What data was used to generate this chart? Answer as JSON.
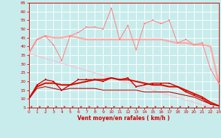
{
  "xlabel": "Vent moyen/en rafales ( km/h )",
  "xlim": [
    0,
    23
  ],
  "ylim": [
    5,
    65
  ],
  "yticks": [
    5,
    10,
    15,
    20,
    25,
    30,
    35,
    40,
    45,
    50,
    55,
    60,
    65
  ],
  "xticks": [
    0,
    1,
    2,
    3,
    4,
    5,
    6,
    7,
    8,
    9,
    10,
    11,
    12,
    13,
    14,
    15,
    16,
    17,
    18,
    19,
    20,
    21,
    22,
    23
  ],
  "background_color": "#c8ecec",
  "grid_color": "#ffffff",
  "x": [
    0,
    1,
    2,
    3,
    4,
    5,
    6,
    7,
    8,
    9,
    10,
    11,
    12,
    13,
    14,
    15,
    16,
    17,
    18,
    19,
    20,
    21,
    22,
    23
  ],
  "line_spiky_pink_y": [
    36,
    44,
    46,
    41,
    32,
    46,
    48,
    51,
    51,
    50,
    62,
    44,
    52,
    38,
    53,
    55,
    53,
    55,
    42,
    44,
    41,
    42,
    27,
    19
  ],
  "line_spiky_pink_color": "#ff8888",
  "line_spiky_pink_lw": 0.8,
  "line_spiky_pink_ms": 2.0,
  "line_flat_pink_y": [
    36,
    44,
    46,
    45,
    45,
    46,
    45,
    44,
    44,
    44,
    44,
    44,
    44,
    44,
    44,
    44,
    44,
    43,
    42,
    42,
    41,
    41,
    40,
    19
  ],
  "line_flat_pink_color": "#ffaaaa",
  "line_flat_pink_lw": 1.8,
  "line_diag_pink_y": [
    36,
    34.6,
    33.2,
    31.8,
    30.4,
    29,
    27.6,
    26.2,
    24.8,
    23.4,
    22,
    20.6,
    19.2,
    17.8,
    16.4,
    15,
    13.6,
    12.2,
    10.8,
    9.4,
    8,
    6.6,
    5.2,
    3.8
  ],
  "line_diag_pink_color": "#ffbbcc",
  "line_diag_pink_lw": 0.8,
  "line_spiky_red_y": [
    10,
    18,
    21,
    20,
    15,
    18,
    21,
    21,
    21,
    20,
    22,
    21,
    22,
    17,
    18,
    19,
    19,
    19,
    17,
    14,
    12,
    10,
    7,
    6
  ],
  "line_spiky_red_color": "#cc0000",
  "line_spiky_red_lw": 1.0,
  "line_spiky_red_ms": 2.0,
  "line_smooth_red_y": [
    10,
    17,
    19,
    19,
    18,
    18,
    19,
    20,
    21,
    21,
    22,
    21,
    21,
    20,
    19,
    18,
    18,
    17,
    17,
    15,
    13,
    11,
    8,
    6
  ],
  "line_smooth_red_color": "#dd1100",
  "line_smooth_red_lw": 1.6,
  "line_lower_red_y": [
    10,
    16,
    17,
    16,
    15,
    16,
    16,
    16,
    16,
    15,
    15,
    15,
    15,
    15,
    14,
    14,
    14,
    14,
    13,
    12,
    11,
    9,
    7,
    6
  ],
  "line_lower_red_color": "#bb0000",
  "line_lower_red_lw": 0.8,
  "arrow_color": "#cc0000",
  "label_color": "#cc0000",
  "tick_color": "#cc0000",
  "spine_color": "#cc0000"
}
